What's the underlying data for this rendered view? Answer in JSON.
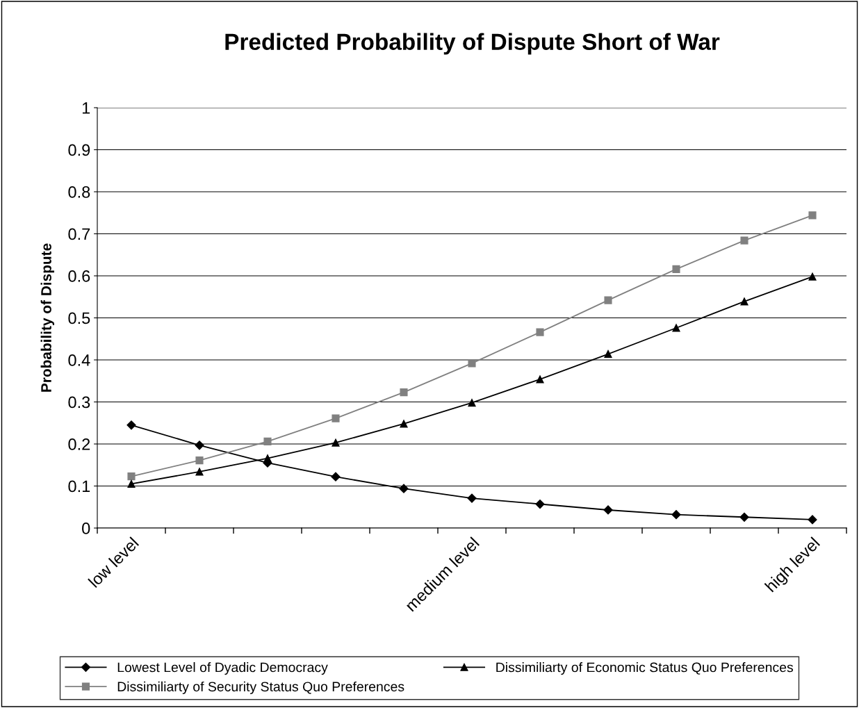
{
  "chart_data": {
    "type": "line",
    "title": "Predicted Probability of Dispute Short of War",
    "ylabel": "Probability of Dispute",
    "categories": [
      "low level",
      null,
      null,
      null,
      null,
      "medium level",
      null,
      null,
      null,
      null,
      "high level"
    ],
    "series": [
      {
        "name": "Lowest Level of Dyadic Democracy",
        "color": "#000000",
        "marker": "diamond",
        "values": [
          0.245,
          0.197,
          0.155,
          0.122,
          0.094,
          0.071,
          0.057,
          0.043,
          0.032,
          0.026,
          0.02
        ]
      },
      {
        "name": "Dissimiliarty of Security Status Quo Preferences",
        "color": "#808080",
        "marker": "square",
        "values": [
          0.123,
          0.161,
          0.206,
          0.261,
          0.323,
          0.392,
          0.466,
          0.542,
          0.616,
          0.684,
          0.744
        ]
      },
      {
        "name": "Dissimiliarty of Economic Status Quo Preferences",
        "color": "#000000",
        "marker": "triangle",
        "values": [
          0.105,
          0.134,
          0.166,
          0.203,
          0.248,
          0.298,
          0.354,
          0.414,
          0.476,
          0.539,
          0.598
        ]
      }
    ],
    "ylim": [
      0,
      1
    ],
    "yticks": [
      0,
      0.1,
      0.2,
      0.3,
      0.4,
      0.5,
      0.6,
      0.7,
      0.8,
      0.9,
      1
    ],
    "grid": "y",
    "legend": "bottom",
    "line_style": "solid"
  }
}
